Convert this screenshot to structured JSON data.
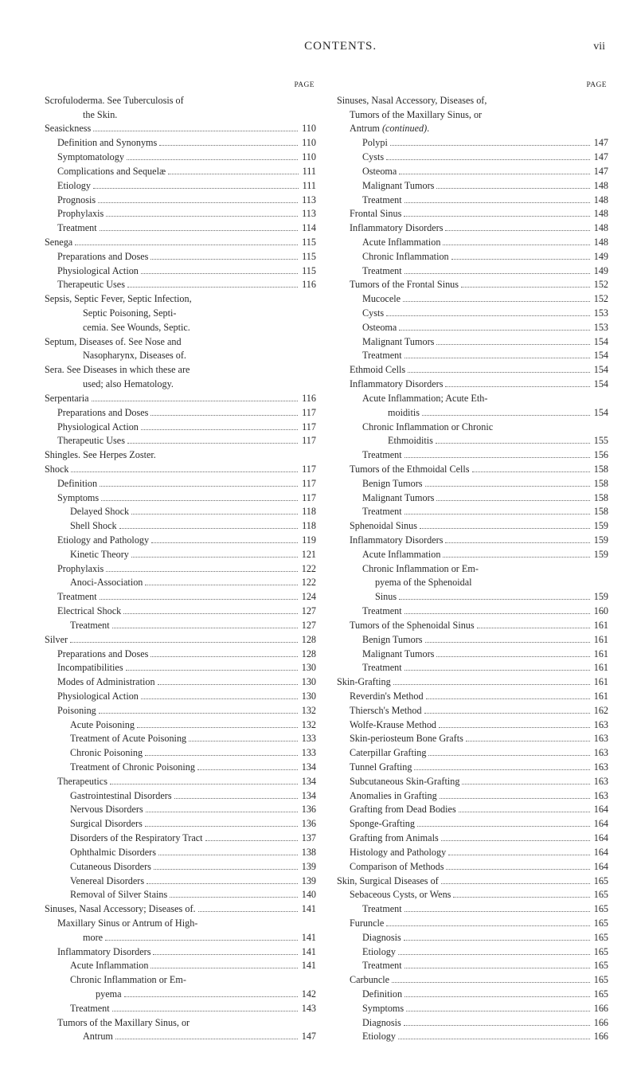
{
  "header": {
    "title": "CONTENTS.",
    "folio": "vii",
    "page_label": "PAGE"
  },
  "left": [
    {
      "indent": 0,
      "text": "Scrofuloderma.   See   Tuberculosis   of",
      "page": "",
      "noleader": true
    },
    {
      "indent": 3,
      "text": "the Skin.",
      "page": "",
      "noleader": true
    },
    {
      "indent": 0,
      "text": "Seasickness",
      "page": "110"
    },
    {
      "indent": 1,
      "text": "Definition and Synonyms",
      "page": "110"
    },
    {
      "indent": 1,
      "text": "Symptomatology",
      "page": "110"
    },
    {
      "indent": 1,
      "text": "Complications and Sequelæ",
      "page": "111"
    },
    {
      "indent": 1,
      "text": "Etiology",
      "page": "111"
    },
    {
      "indent": 1,
      "text": "Prognosis",
      "page": "113"
    },
    {
      "indent": 1,
      "text": "Prophylaxis",
      "page": "113"
    },
    {
      "indent": 1,
      "text": "Treatment",
      "page": "114"
    },
    {
      "indent": 0,
      "text": "Senega",
      "page": "115"
    },
    {
      "indent": 1,
      "text": "Preparations and Doses",
      "page": "115"
    },
    {
      "indent": 1,
      "text": "Physiological Action",
      "page": "115"
    },
    {
      "indent": 1,
      "text": "Therapeutic Uses",
      "page": "116"
    },
    {
      "indent": 0,
      "text": "Sepsis,  Septic  Fever,  Septic  Infection,",
      "page": "",
      "noleader": true
    },
    {
      "indent": 3,
      "text": "Septic    Poisoning,    Septi-",
      "page": "",
      "noleader": true
    },
    {
      "indent": 3,
      "text": "cemia.   See Wounds, Septic.",
      "page": "",
      "noleader": true
    },
    {
      "indent": 0,
      "text": "Septum,   Diseases   of.    See   Nose   and",
      "page": "",
      "noleader": true
    },
    {
      "indent": 3,
      "text": "Nasopharynx,   Diseases   of.",
      "page": "",
      "noleader": true
    },
    {
      "indent": 0,
      "text": "Sera.    See  Diseases  in  which  these  are",
      "page": "",
      "noleader": true
    },
    {
      "indent": 3,
      "text": "used; also Hematology.",
      "page": "",
      "noleader": true
    },
    {
      "indent": 0,
      "text": "Serpentaria",
      "page": "116"
    },
    {
      "indent": 1,
      "text": "Preparations and Doses",
      "page": "117"
    },
    {
      "indent": 1,
      "text": "Physiological Action",
      "page": "117"
    },
    {
      "indent": 1,
      "text": "Therapeutic Uses",
      "page": "117"
    },
    {
      "indent": 0,
      "text": "Shingles.  See Herpes Zoster.",
      "page": "",
      "noleader": true
    },
    {
      "indent": 0,
      "text": "Shock",
      "page": "117"
    },
    {
      "indent": 1,
      "text": "Definition",
      "page": "117"
    },
    {
      "indent": 1,
      "text": "Symptoms",
      "page": "117"
    },
    {
      "indent": 2,
      "text": "Delayed Shock",
      "page": "118"
    },
    {
      "indent": 2,
      "text": "Shell Shock",
      "page": "118"
    },
    {
      "indent": 1,
      "text": "Etiology and Pathology",
      "page": "119"
    },
    {
      "indent": 2,
      "text": "Kinetic Theory",
      "page": "121"
    },
    {
      "indent": 1,
      "text": "Prophylaxis",
      "page": "122"
    },
    {
      "indent": 2,
      "text": "Anoci-Association",
      "page": "122"
    },
    {
      "indent": 1,
      "text": "Treatment",
      "page": "124"
    },
    {
      "indent": 1,
      "text": "Electrical Shock",
      "page": "127"
    },
    {
      "indent": 2,
      "text": "Treatment",
      "page": "127"
    },
    {
      "indent": 0,
      "text": "Silver",
      "page": "128"
    },
    {
      "indent": 1,
      "text": "Preparations and Doses",
      "page": "128"
    },
    {
      "indent": 1,
      "text": "Incompatibilities",
      "page": "130"
    },
    {
      "indent": 1,
      "text": "Modes of Administration",
      "page": "130"
    },
    {
      "indent": 1,
      "text": "Physiological Action",
      "page": "130"
    },
    {
      "indent": 1,
      "text": "Poisoning",
      "page": "132"
    },
    {
      "indent": 2,
      "text": "Acute Poisoning",
      "page": "132"
    },
    {
      "indent": 2,
      "text": "Treatment of Acute Poisoning",
      "page": "133"
    },
    {
      "indent": 2,
      "text": "Chronic Poisoning",
      "page": "133"
    },
    {
      "indent": 2,
      "text": "Treatment of Chronic Poisoning",
      "page": "134"
    },
    {
      "indent": 1,
      "text": "Therapeutics",
      "page": "134"
    },
    {
      "indent": 2,
      "text": "Gastrointestinal Disorders",
      "page": "134"
    },
    {
      "indent": 2,
      "text": "Nervous Disorders",
      "page": "136"
    },
    {
      "indent": 2,
      "text": "Surgical Disorders",
      "page": "136"
    },
    {
      "indent": 2,
      "text": "Disorders of the Respiratory Tract",
      "page": "137"
    },
    {
      "indent": 2,
      "text": "Ophthalmic Disorders",
      "page": "138"
    },
    {
      "indent": 2,
      "text": "Cutaneous Disorders",
      "page": "139"
    },
    {
      "indent": 2,
      "text": "Venereal Disorders",
      "page": "139"
    },
    {
      "indent": 2,
      "text": "Removal of Silver Stains",
      "page": "140"
    },
    {
      "indent": 0,
      "text": "Sinuses, Nasal Accessory; Diseases of.",
      "page": "141"
    },
    {
      "indent": 1,
      "text": "Maxillary Sinus or Antrum of High-",
      "page": "",
      "noleader": true
    },
    {
      "indent": 3,
      "text": "more",
      "page": "141"
    },
    {
      "indent": 1,
      "text": "Inflammatory Disorders",
      "page": "141"
    },
    {
      "indent": 2,
      "text": "Acute Inflammation",
      "page": "141"
    },
    {
      "indent": 2,
      "text": "Chronic  Inflammation  or  Em-",
      "page": "",
      "noleader": true
    },
    {
      "indent": 4,
      "text": "pyema",
      "page": "142"
    },
    {
      "indent": 2,
      "text": "Treatment",
      "page": "143"
    },
    {
      "indent": 1,
      "text": "Tumors  of  the  Maxillary  Sinus,  or",
      "page": "",
      "noleader": true
    },
    {
      "indent": 3,
      "text": "Antrum",
      "page": "147"
    }
  ],
  "right": [
    {
      "indent": 0,
      "text": "Sinuses,  Nasal  Accessory,  Diseases  of,",
      "page": "",
      "noleader": true
    },
    {
      "indent": 1,
      "text": "Tumors  of  the  Maxillary  Sinus,  or",
      "page": "",
      "noleader": true
    },
    {
      "indent": 1,
      "text": "Antrum (continued).",
      "page": "",
      "noleader": true,
      "italicPart": "(continued)"
    },
    {
      "indent": 2,
      "text": "Polypi",
      "page": "147"
    },
    {
      "indent": 2,
      "text": "Cysts",
      "page": "147"
    },
    {
      "indent": 2,
      "text": "Osteoma",
      "page": "147"
    },
    {
      "indent": 2,
      "text": "Malignant Tumors",
      "page": "148"
    },
    {
      "indent": 2,
      "text": "Treatment",
      "page": "148"
    },
    {
      "indent": 1,
      "text": "Frontal Sinus",
      "page": "148"
    },
    {
      "indent": 1,
      "text": "Inflammatory Disorders",
      "page": "148"
    },
    {
      "indent": 2,
      "text": "Acute Inflammation",
      "page": "148"
    },
    {
      "indent": 2,
      "text": "Chronic Inflammation",
      "page": "149"
    },
    {
      "indent": 2,
      "text": "Treatment",
      "page": "149"
    },
    {
      "indent": 1,
      "text": "Tumors of the Frontal Sinus",
      "page": "152"
    },
    {
      "indent": 2,
      "text": "Mucocele",
      "page": "152"
    },
    {
      "indent": 2,
      "text": "Cysts",
      "page": "153"
    },
    {
      "indent": 2,
      "text": "Osteoma",
      "page": "153"
    },
    {
      "indent": 2,
      "text": "Malignant Tumors",
      "page": "154"
    },
    {
      "indent": 2,
      "text": "Treatment",
      "page": "154"
    },
    {
      "indent": 1,
      "text": "Ethmoid Cells",
      "page": "154"
    },
    {
      "indent": 1,
      "text": "Inflammatory Disorders",
      "page": "154"
    },
    {
      "indent": 2,
      "text": "Acute Inflammation; Acute Eth-",
      "page": "",
      "noleader": true
    },
    {
      "indent": 4,
      "text": "moiditis",
      "page": "154"
    },
    {
      "indent": 2,
      "text": "Chronic Inflammation or Chronic",
      "page": "",
      "noleader": true
    },
    {
      "indent": 4,
      "text": "Ethmoiditis",
      "page": "155"
    },
    {
      "indent": 2,
      "text": "Treatment",
      "page": "156"
    },
    {
      "indent": 1,
      "text": "Tumors of the Ethmoidal Cells",
      "page": "158"
    },
    {
      "indent": 2,
      "text": "Benign Tumors",
      "page": "158"
    },
    {
      "indent": 2,
      "text": "Malignant Tumors",
      "page": "158"
    },
    {
      "indent": 2,
      "text": "Treatment",
      "page": "158"
    },
    {
      "indent": 1,
      "text": "Sphenoidal Sinus",
      "page": "159"
    },
    {
      "indent": 1,
      "text": "Inflammatory Disorders",
      "page": "159"
    },
    {
      "indent": 2,
      "text": "Acute Inflammation",
      "page": "159"
    },
    {
      "indent": 2,
      "text": "Chronic  Inflammation  or  Em-",
      "page": "",
      "noleader": true
    },
    {
      "indent": 3,
      "text": "pyema   of   the   Sphenoidal",
      "page": "",
      "noleader": true
    },
    {
      "indent": 3,
      "text": "Sinus",
      "page": "159"
    },
    {
      "indent": 2,
      "text": "Treatment",
      "page": "160"
    },
    {
      "indent": 1,
      "text": "Tumors of the Sphenoidal Sinus",
      "page": "161"
    },
    {
      "indent": 2,
      "text": "Benign Tumors",
      "page": "161"
    },
    {
      "indent": 2,
      "text": "Malignant Tumors",
      "page": "161"
    },
    {
      "indent": 2,
      "text": "Treatment",
      "page": "161"
    },
    {
      "indent": 0,
      "text": "Skin-Grafting",
      "page": "161"
    },
    {
      "indent": 1,
      "text": "Reverdin's Method",
      "page": "161"
    },
    {
      "indent": 1,
      "text": "Thiersch's Method",
      "page": "162"
    },
    {
      "indent": 1,
      "text": "Wolfe-Krause Method",
      "page": "163"
    },
    {
      "indent": 1,
      "text": "Skin-periosteum Bone Grafts",
      "page": "163"
    },
    {
      "indent": 1,
      "text": "Caterpillar Grafting",
      "page": "163"
    },
    {
      "indent": 1,
      "text": "Tunnel Grafting",
      "page": "163"
    },
    {
      "indent": 1,
      "text": "Subcutaneous Skin-Grafting",
      "page": "163"
    },
    {
      "indent": 1,
      "text": "Anomalies in Grafting",
      "page": "163"
    },
    {
      "indent": 1,
      "text": "Grafting from Dead Bodies",
      "page": "164"
    },
    {
      "indent": 1,
      "text": "Sponge-Grafting",
      "page": "164"
    },
    {
      "indent": 1,
      "text": "Grafting from Animals",
      "page": "164"
    },
    {
      "indent": 1,
      "text": "Histology and Pathology",
      "page": "164"
    },
    {
      "indent": 1,
      "text": "Comparison of Methods",
      "page": "164"
    },
    {
      "indent": 0,
      "text": "Skin, Surgical Diseases of",
      "page": "165"
    },
    {
      "indent": 1,
      "text": "Sebaceous Cysts, or Wens",
      "page": "165"
    },
    {
      "indent": 2,
      "text": "Treatment",
      "page": "165"
    },
    {
      "indent": 1,
      "text": "Furuncle",
      "page": "165"
    },
    {
      "indent": 2,
      "text": "Diagnosis",
      "page": "165"
    },
    {
      "indent": 2,
      "text": "Etiology",
      "page": "165"
    },
    {
      "indent": 2,
      "text": "Treatment",
      "page": "165"
    },
    {
      "indent": 1,
      "text": "Carbuncle",
      "page": "165"
    },
    {
      "indent": 2,
      "text": "Definition",
      "page": "165"
    },
    {
      "indent": 2,
      "text": "Symptoms",
      "page": "166"
    },
    {
      "indent": 2,
      "text": "Diagnosis",
      "page": "166"
    },
    {
      "indent": 2,
      "text": "Etiology",
      "page": "166"
    }
  ]
}
